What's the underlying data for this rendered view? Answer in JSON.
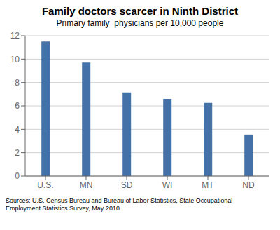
{
  "chart_data": {
    "type": "bar",
    "title": "Family doctors scarcer in Ninth District",
    "subtitle": "Primary family  physicians per 10,000 people",
    "footnote": "Sources: U.S. Census Bureau and Bureau of Labor Statistics, State Occupational\nEmployment Statistics Survey, May 2010",
    "categories": [
      "U.S.",
      "MN",
      "SD",
      "WI",
      "MT",
      "ND"
    ],
    "values": [
      11.5,
      9.7,
      7.15,
      6.6,
      6.25,
      3.55
    ],
    "color": "#4472a8",
    "ylim": [
      0,
      12
    ],
    "yticks": [
      0,
      2,
      4,
      6,
      8,
      10,
      12
    ],
    "grid": true
  }
}
